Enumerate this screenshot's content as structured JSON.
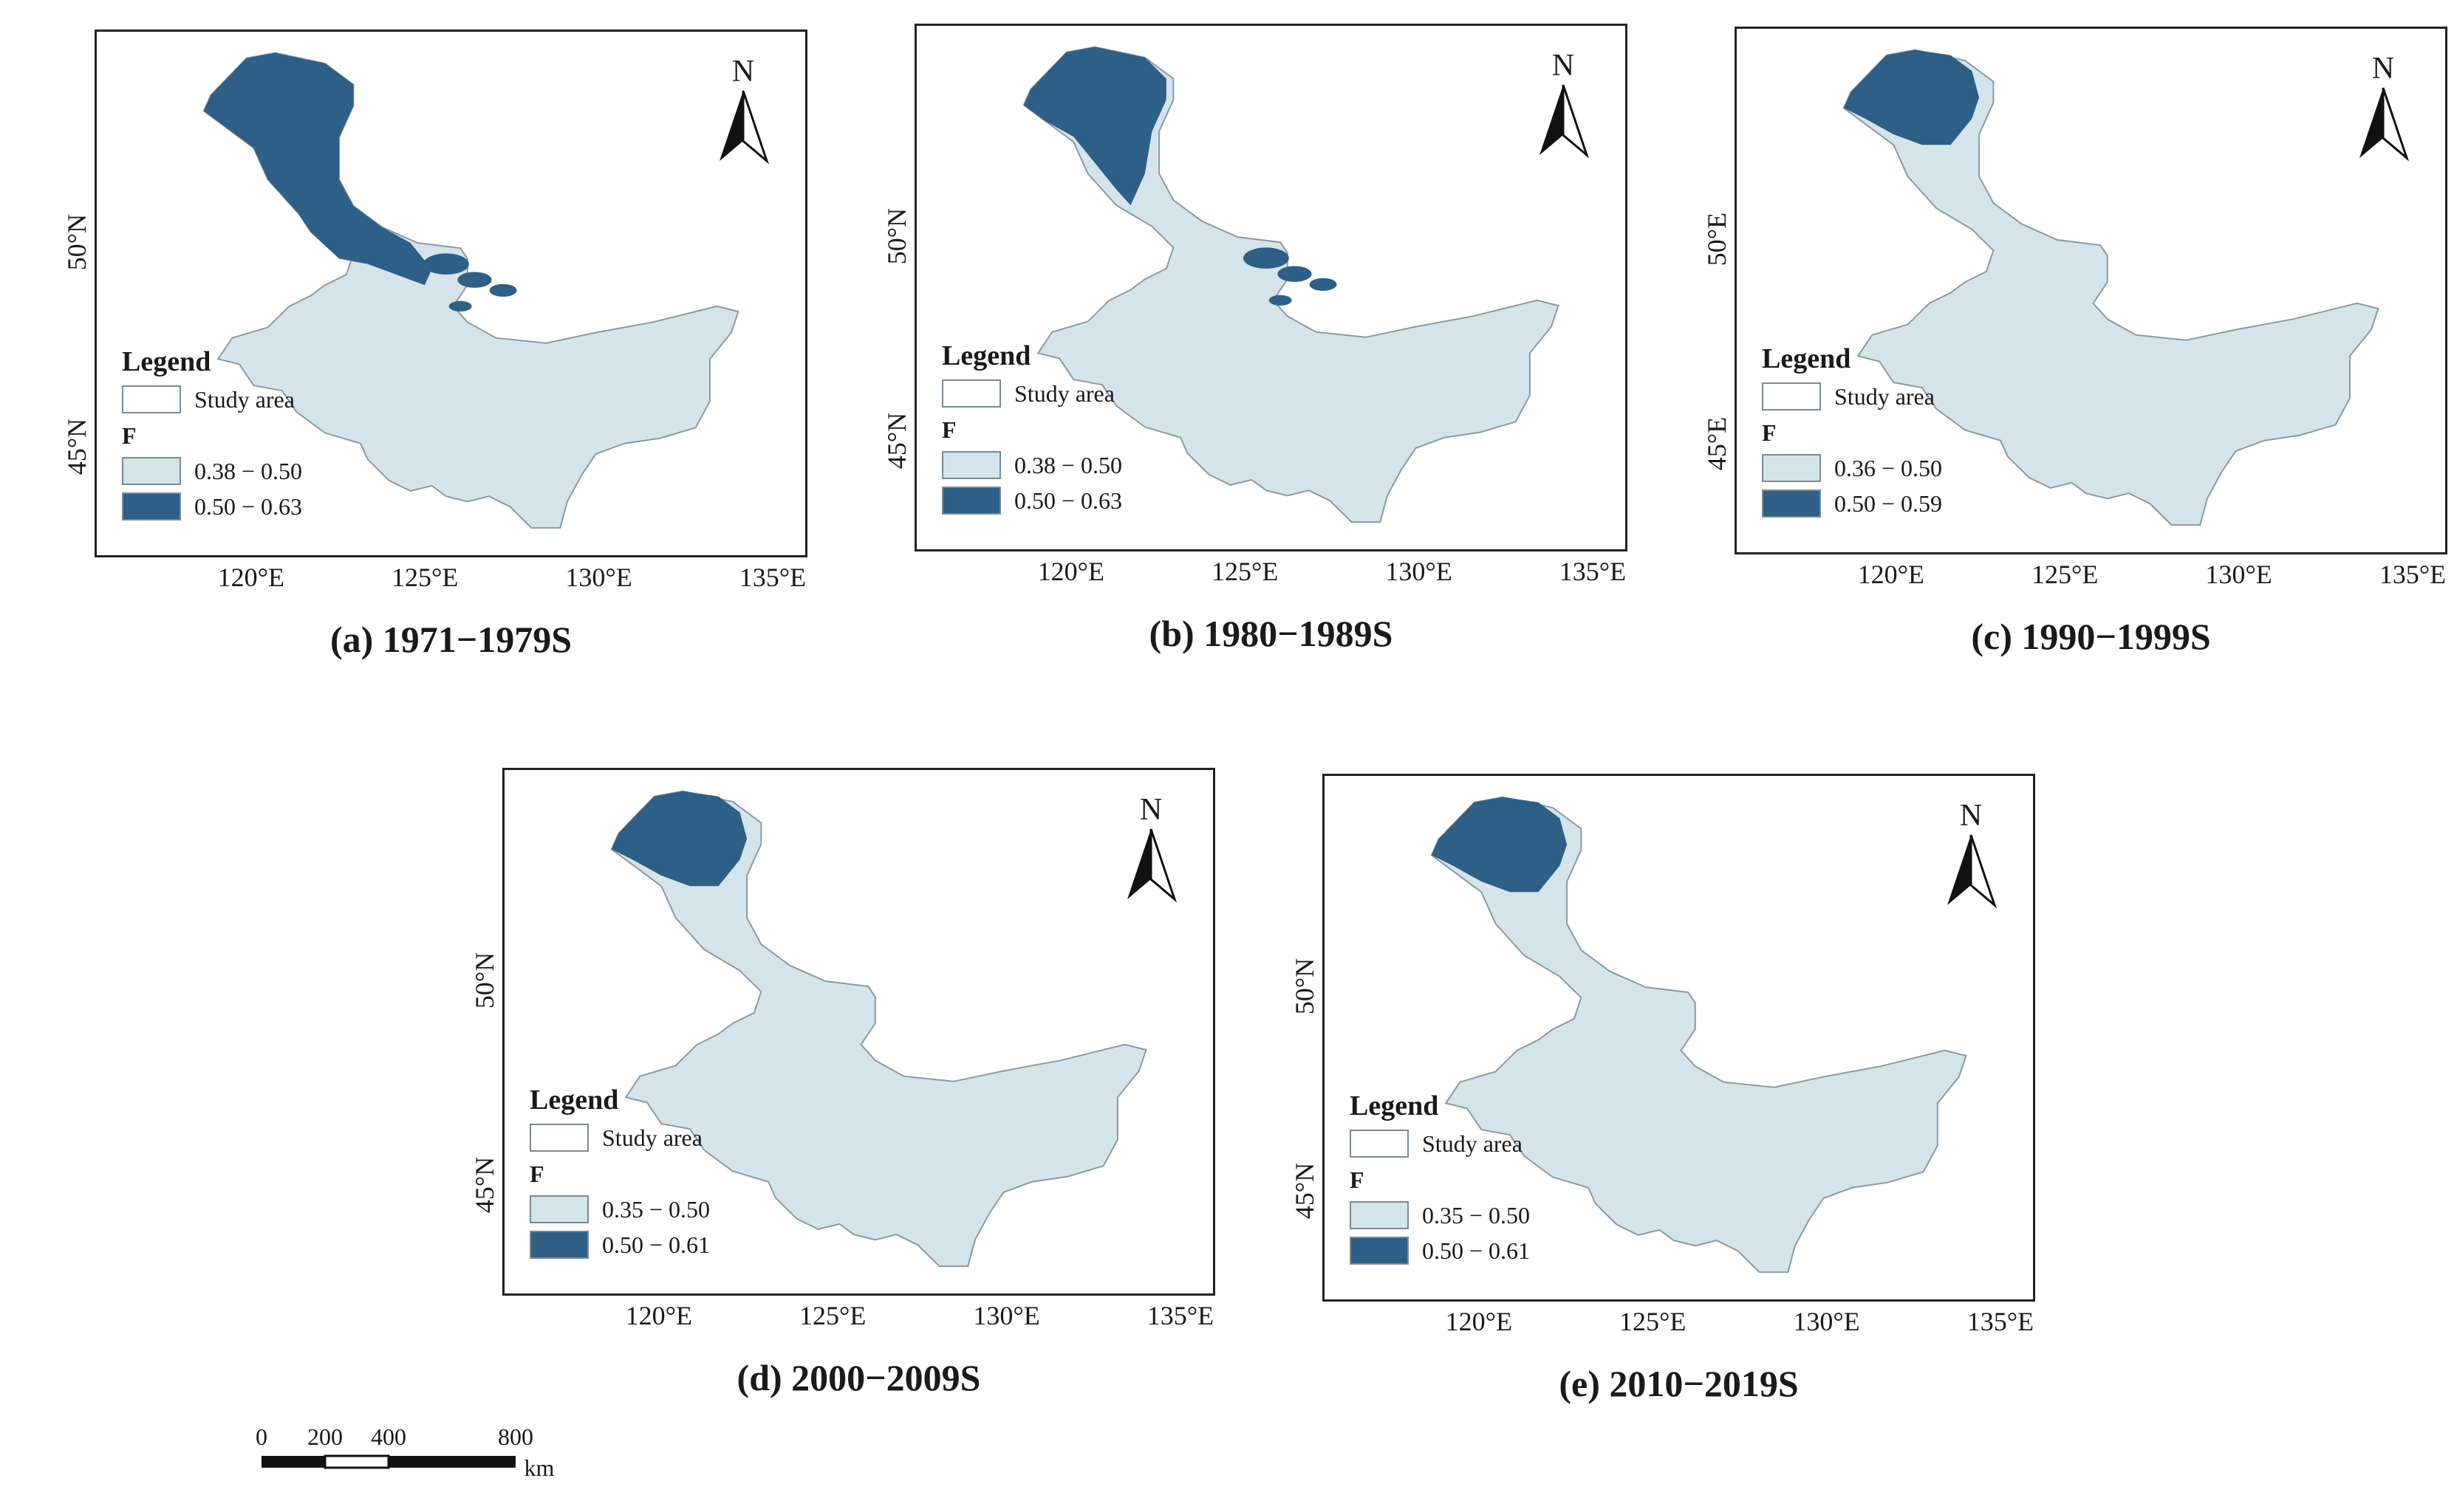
{
  "axes": {
    "x_ticks": [
      "120°E",
      "125°E",
      "130°E",
      "135°E"
    ],
    "y_ticks_n": [
      "50°N",
      "45°N"
    ],
    "y_ticks_e": [
      "50°E",
      "45°E"
    ]
  },
  "colors": {
    "low": "#d5e4ea",
    "high": "#2e5f86",
    "outline": "#8a9aa4"
  },
  "legend_common": {
    "title": "Legend",
    "study_area": "Study area",
    "field": "F"
  },
  "panels": [
    {
      "caption": "(a) 1971−1979S",
      "low": "0.38 − 0.50",
      "high": "0.50 − 0.63"
    },
    {
      "caption": "(b) 1980−1989S",
      "low": "0.38 − 0.50",
      "high": "0.50 − 0.63"
    },
    {
      "caption": "(c) 1990−1999S",
      "low": "0.36 − 0.50",
      "high": "0.50 − 0.59"
    },
    {
      "caption": "(d) 2000−2009S",
      "low": "0.35 − 0.50",
      "high": "0.50 − 0.61"
    },
    {
      "caption": "(e) 2010−2019S",
      "low": "0.35 − 0.50",
      "high": "0.50 − 0.61"
    }
  ],
  "north_label": "N",
  "scale": {
    "labels": [
      "0",
      "200",
      "400",
      "800"
    ],
    "unit": "km"
  }
}
